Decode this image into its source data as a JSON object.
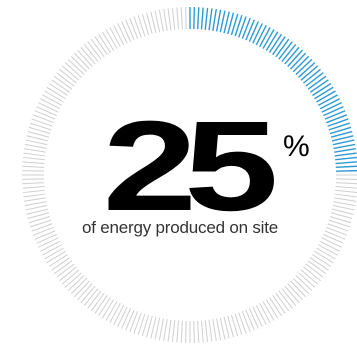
{
  "stat": {
    "value": "25",
    "unit": "%",
    "caption": "of energy produced on site"
  },
  "gauge": {
    "progress_fraction": 0.25,
    "accent_color": "#2e9bd6",
    "track_color": "#cfcfcf"
  }
}
